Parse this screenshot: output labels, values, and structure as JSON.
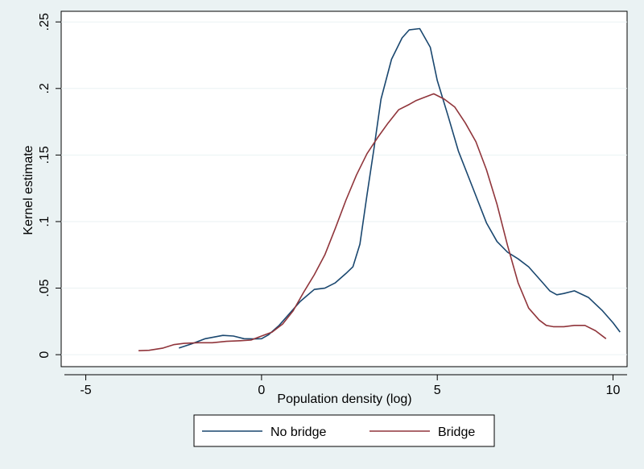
{
  "chart_data": {
    "type": "line",
    "title": "",
    "xlabel": "Population density (log)",
    "ylabel": "Kernel estimate",
    "xlim": [
      -5.7,
      10.4
    ],
    "ylim": [
      -0.009,
      0.258
    ],
    "x_ticks": [
      {
        "value": -5,
        "label": "-5"
      },
      {
        "value": 0,
        "label": "0"
      },
      {
        "value": 5,
        "label": "5"
      },
      {
        "value": 10,
        "label": "10"
      }
    ],
    "y_ticks": [
      {
        "value": 0,
        "label": "0"
      },
      {
        "value": 0.05,
        "label": ".05"
      },
      {
        "value": 0.1,
        "label": ".1"
      },
      {
        "value": 0.15,
        "label": ".15"
      },
      {
        "value": 0.2,
        "label": ".2"
      },
      {
        "value": 0.25,
        "label": ".25"
      }
    ],
    "grid": "horizontal",
    "legend_position": "bottom",
    "series": [
      {
        "name": "No bridge",
        "color": "#1a476f",
        "points": [
          [
            -2.35,
            0.005
          ],
          [
            -2.0,
            0.008
          ],
          [
            -1.6,
            0.012
          ],
          [
            -1.1,
            0.0145
          ],
          [
            -0.8,
            0.014
          ],
          [
            -0.5,
            0.012
          ],
          [
            -0.2,
            0.0118
          ],
          [
            0.0,
            0.012
          ],
          [
            0.2,
            0.015
          ],
          [
            0.5,
            0.022
          ],
          [
            0.8,
            0.031
          ],
          [
            1.1,
            0.04
          ],
          [
            1.5,
            0.049
          ],
          [
            1.8,
            0.05
          ],
          [
            2.1,
            0.054
          ],
          [
            2.4,
            0.061
          ],
          [
            2.6,
            0.066
          ],
          [
            2.8,
            0.083
          ],
          [
            3.0,
            0.12
          ],
          [
            3.2,
            0.155
          ],
          [
            3.4,
            0.192
          ],
          [
            3.7,
            0.222
          ],
          [
            4.0,
            0.238
          ],
          [
            4.2,
            0.244
          ],
          [
            4.5,
            0.245
          ],
          [
            4.8,
            0.231
          ],
          [
            5.0,
            0.206
          ],
          [
            5.3,
            0.18
          ],
          [
            5.6,
            0.153
          ],
          [
            6.0,
            0.126
          ],
          [
            6.4,
            0.099
          ],
          [
            6.7,
            0.085
          ],
          [
            7.0,
            0.077
          ],
          [
            7.3,
            0.072
          ],
          [
            7.6,
            0.066
          ],
          [
            8.0,
            0.054
          ],
          [
            8.2,
            0.048
          ],
          [
            8.4,
            0.045
          ],
          [
            8.6,
            0.046
          ],
          [
            8.9,
            0.048
          ],
          [
            9.3,
            0.043
          ],
          [
            9.7,
            0.033
          ],
          [
            10.0,
            0.024
          ],
          [
            10.2,
            0.017
          ]
        ]
      },
      {
        "name": "Bridge",
        "color": "#90353b",
        "points": [
          [
            -3.5,
            0.003
          ],
          [
            -3.2,
            0.0033
          ],
          [
            -2.8,
            0.005
          ],
          [
            -2.5,
            0.0075
          ],
          [
            -2.2,
            0.0085
          ],
          [
            -1.8,
            0.009
          ],
          [
            -1.4,
            0.009
          ],
          [
            -1.0,
            0.01
          ],
          [
            -0.6,
            0.0105
          ],
          [
            -0.3,
            0.011
          ],
          [
            0.0,
            0.014
          ],
          [
            0.3,
            0.017
          ],
          [
            0.6,
            0.023
          ],
          [
            0.9,
            0.033
          ],
          [
            1.2,
            0.047
          ],
          [
            1.5,
            0.06
          ],
          [
            1.8,
            0.075
          ],
          [
            2.1,
            0.095
          ],
          [
            2.4,
            0.116
          ],
          [
            2.7,
            0.135
          ],
          [
            3.0,
            0.151
          ],
          [
            3.3,
            0.163
          ],
          [
            3.6,
            0.174
          ],
          [
            3.9,
            0.184
          ],
          [
            4.2,
            0.188
          ],
          [
            4.4,
            0.191
          ],
          [
            4.6,
            0.193
          ],
          [
            4.9,
            0.196
          ],
          [
            5.2,
            0.192
          ],
          [
            5.5,
            0.186
          ],
          [
            5.8,
            0.174
          ],
          [
            6.1,
            0.16
          ],
          [
            6.4,
            0.139
          ],
          [
            6.7,
            0.113
          ],
          [
            7.0,
            0.082
          ],
          [
            7.3,
            0.054
          ],
          [
            7.6,
            0.035
          ],
          [
            7.9,
            0.026
          ],
          [
            8.1,
            0.022
          ],
          [
            8.3,
            0.021
          ],
          [
            8.6,
            0.021
          ],
          [
            8.9,
            0.022
          ],
          [
            9.2,
            0.022
          ],
          [
            9.5,
            0.018
          ],
          [
            9.8,
            0.012
          ]
        ]
      }
    ]
  }
}
